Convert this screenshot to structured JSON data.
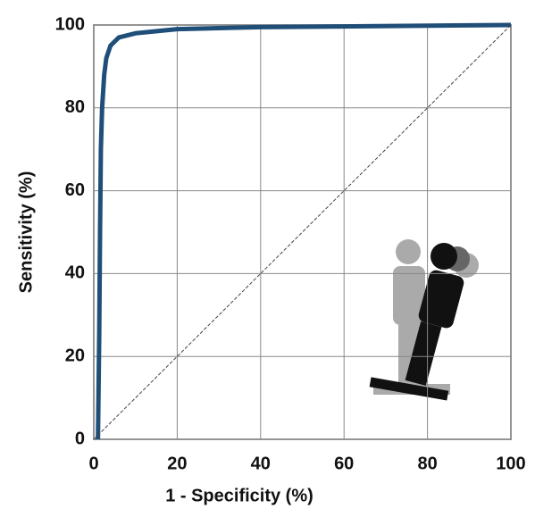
{
  "chart_data": {
    "type": "line",
    "x_label": "1 - Specificity (%)",
    "y_label": "Sensitivity (%)",
    "xlim": [
      0,
      100
    ],
    "ylim": [
      0,
      100
    ],
    "xticks": [
      0,
      20,
      40,
      60,
      80,
      100
    ],
    "yticks": [
      0,
      20,
      40,
      60,
      80,
      100
    ],
    "grid": true,
    "series": [
      {
        "color": "#1f4e79",
        "width": 5,
        "x": [
          1,
          1.3,
          1.5,
          1.7,
          2,
          2.5,
          3,
          4,
          6,
          10,
          20,
          40,
          100
        ],
        "values": [
          0,
          25,
          50,
          70,
          80,
          88,
          92,
          95,
          97,
          98,
          99,
          99.5,
          100
        ]
      },
      {
        "color": "#444444",
        "width": 1,
        "dashed": true,
        "x": [
          0,
          100
        ],
        "values": [
          0,
          100
        ]
      }
    ]
  }
}
